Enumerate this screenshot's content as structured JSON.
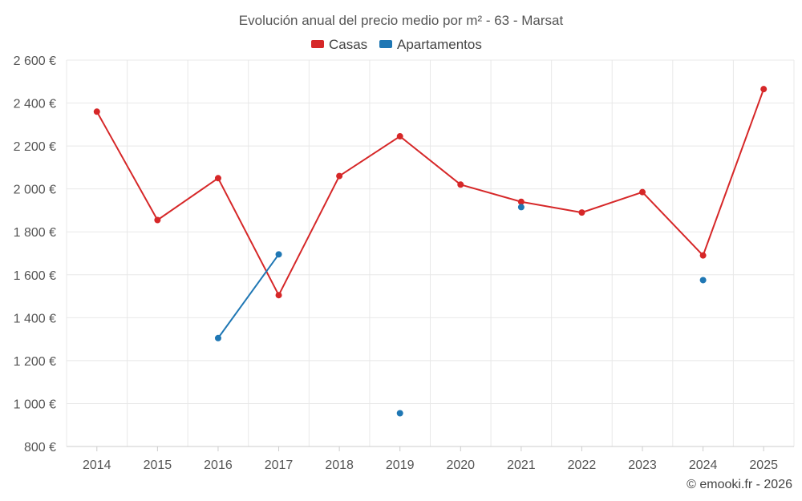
{
  "chart_data": {
    "type": "line",
    "title": "Evolución anual del precio medio por m² - 63 - Marsat",
    "categories": [
      "2014",
      "2015",
      "2016",
      "2017",
      "2018",
      "2019",
      "2020",
      "2021",
      "2022",
      "2023",
      "2024",
      "2025"
    ],
    "ylim": [
      800,
      2600
    ],
    "yticks": [
      800,
      1000,
      1200,
      1400,
      1600,
      1800,
      2000,
      2200,
      2400,
      2600
    ],
    "ytick_labels": [
      "800 €",
      "1 000 €",
      "1 200 €",
      "1 400 €",
      "1 600 €",
      "1 800 €",
      "2 000 €",
      "2 200 €",
      "2 400 €",
      "2 600 €"
    ],
    "legend_position": "top-center",
    "grid": true,
    "series": [
      {
        "name": "Casas",
        "color": "#d62728",
        "values": [
          2360,
          1855,
          2050,
          1505,
          2060,
          2245,
          2020,
          1940,
          1890,
          1985,
          1690,
          2465
        ]
      },
      {
        "name": "Apartamentos",
        "color": "#1f77b4",
        "values": [
          null,
          null,
          1305,
          1695,
          null,
          955,
          null,
          1915,
          null,
          null,
          1575,
          null
        ]
      }
    ]
  },
  "credit": "© emooki.fr - 2026"
}
